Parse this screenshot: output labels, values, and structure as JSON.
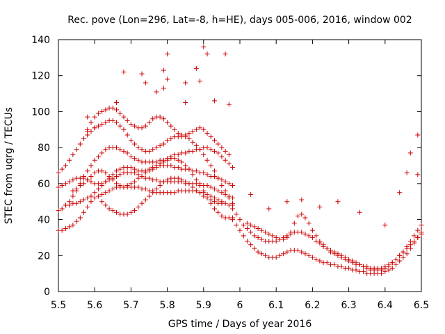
{
  "chart_data": {
    "type": "scatter",
    "title": "Rec. pove (Lon=296, Lat=-8, h=HE), days 005-006, 2016, window 002",
    "xlabel": "GPS time / Days of year 2016",
    "ylabel": "STEC from uqrg / TECUs",
    "xlim": [
      5.5,
      6.5
    ],
    "ylim": [
      0,
      140
    ],
    "xticks": [
      "5.5",
      "5.6",
      "5.7",
      "5.8",
      "5.9",
      "6",
      "6.1",
      "6.2",
      "6.3",
      "6.4",
      "6.5"
    ],
    "yticks": [
      "0",
      "20",
      "40",
      "60",
      "80",
      "100",
      "120",
      "140"
    ],
    "marker": "+",
    "color": "#cc0000",
    "grid": false,
    "legend": "none",
    "series": [
      {
        "x": [
          5.5,
          5.51,
          5.52,
          5.53,
          5.54,
          5.55,
          5.56,
          5.57,
          5.58,
          5.59,
          5.6,
          5.61,
          5.62,
          5.63,
          5.64,
          5.65,
          5.66,
          5.67,
          5.68,
          5.69,
          5.7,
          5.71,
          5.72,
          5.73,
          5.74,
          5.75,
          5.76,
          5.77,
          5.78,
          5.79,
          5.8,
          5.81,
          5.82,
          5.83,
          5.84,
          5.85,
          5.86,
          5.87,
          5.88,
          5.89,
          5.9,
          5.91,
          5.92,
          5.93,
          5.94,
          5.95,
          5.96,
          5.97,
          5.98
        ],
        "values": [
          45,
          46,
          48,
          50,
          53,
          56,
          60,
          64,
          67,
          70,
          73,
          75,
          77,
          79,
          80,
          80,
          80,
          79,
          78,
          77,
          75,
          74,
          73,
          72,
          72,
          72,
          72,
          72,
          73,
          73,
          74,
          75,
          76,
          76,
          77,
          77,
          78,
          78,
          79,
          79,
          80,
          80,
          79,
          78,
          77,
          75,
          73,
          71,
          69
        ]
      },
      {
        "x": [
          5.5,
          5.51,
          5.52,
          5.53,
          5.54,
          5.55,
          5.56,
          5.57,
          5.58,
          5.59,
          5.6,
          5.61,
          5.62,
          5.63,
          5.64,
          5.65,
          5.66,
          5.67,
          5.68,
          5.69,
          5.7,
          5.71,
          5.72,
          5.73,
          5.74,
          5.75,
          5.76,
          5.77,
          5.78,
          5.79,
          5.8,
          5.81,
          5.82,
          5.83,
          5.84,
          5.85,
          5.86,
          5.87,
          5.88,
          5.89,
          5.9,
          5.91,
          5.92,
          5.93,
          5.94,
          5.95,
          5.96,
          5.97,
          5.98
        ],
        "values": [
          34,
          34,
          35,
          36,
          37,
          39,
          41,
          44,
          47,
          50,
          52,
          53,
          54,
          55,
          56,
          57,
          58,
          58,
          58,
          58,
          58,
          58,
          58,
          57,
          57,
          56,
          56,
          55,
          55,
          55,
          55,
          55,
          55,
          56,
          56,
          56,
          56,
          56,
          56,
          55,
          55,
          54,
          53,
          52,
          51,
          50,
          49,
          48,
          48
        ]
      },
      {
        "x": [
          5.5,
          5.51,
          5.52,
          5.53,
          5.54,
          5.55,
          5.56,
          5.57,
          5.58,
          5.59,
          5.6,
          5.61,
          5.62,
          5.63,
          5.64,
          5.65,
          5.66,
          5.67,
          5.68,
          5.69,
          5.7,
          5.71,
          5.72,
          5.73,
          5.74,
          5.75,
          5.76,
          5.77,
          5.78,
          5.79,
          5.8,
          5.81,
          5.82,
          5.83,
          5.84,
          5.85,
          5.86,
          5.87,
          5.88,
          5.89,
          5.9,
          5.91,
          5.92,
          5.93,
          5.94,
          5.95,
          5.96,
          5.97,
          5.98
        ],
        "values": [
          58,
          59,
          60,
          61,
          62,
          63,
          63,
          63,
          62,
          61,
          60,
          60,
          60,
          61,
          62,
          63,
          64,
          65,
          66,
          66,
          66,
          66,
          65,
          64,
          63,
          63,
          62,
          62,
          61,
          61,
          61,
          61,
          61,
          61,
          61,
          60,
          60,
          60,
          60,
          60,
          59,
          59,
          58,
          57,
          56,
          55,
          54,
          53,
          52
        ]
      },
      {
        "x": [
          5.5,
          5.51,
          5.52,
          5.53,
          5.54,
          5.55,
          5.56,
          5.57,
          5.58,
          5.59,
          5.6,
          5.61,
          5.62,
          5.63,
          5.64,
          5.65,
          5.66,
          5.67,
          5.68,
          5.69,
          5.7,
          5.71,
          5.72,
          5.73,
          5.74,
          5.75,
          5.76,
          5.77,
          5.78,
          5.79,
          5.8,
          5.81,
          5.82,
          5.83,
          5.84,
          5.85,
          5.86,
          5.87,
          5.88,
          5.89,
          5.9,
          5.91,
          5.92,
          5.93,
          5.94,
          5.95,
          5.96,
          5.97,
          5.98
        ],
        "values": [
          66,
          68,
          70,
          73,
          76,
          79,
          82,
          85,
          87,
          89,
          91,
          92,
          93,
          94,
          95,
          95,
          94,
          92,
          90,
          87,
          84,
          82,
          80,
          79,
          78,
          78,
          79,
          80,
          81,
          82,
          84,
          85,
          86,
          86,
          86,
          86,
          85,
          83,
          81,
          79,
          76,
          73,
          70,
          67,
          63,
          59,
          56,
          52,
          49
        ]
      },
      {
        "x": [
          5.52,
          5.53,
          5.54,
          5.55,
          5.56,
          5.57,
          5.58,
          5.59,
          5.6,
          5.61,
          5.62,
          5.63,
          5.64,
          5.65,
          5.66,
          5.67,
          5.68,
          5.69,
          5.7,
          5.71,
          5.72,
          5.73,
          5.74,
          5.75,
          5.76,
          5.77,
          5.78,
          5.79,
          5.8,
          5.81,
          5.82,
          5.83,
          5.84,
          5.85,
          5.86,
          5.87,
          5.88,
          5.89,
          5.9,
          5.91,
          5.92,
          5.93,
          5.94,
          5.95,
          5.96,
          5.97,
          5.98
        ],
        "values": [
          48,
          48,
          49,
          49,
          50,
          51,
          52,
          53,
          55,
          57,
          59,
          61,
          63,
          65,
          67,
          68,
          69,
          69,
          69,
          68,
          67,
          67,
          67,
          68,
          69,
          70,
          71,
          72,
          73,
          74,
          74,
          73,
          72,
          70,
          68,
          65,
          62,
          59,
          56,
          52,
          49,
          46,
          44,
          42,
          41,
          41,
          41
        ]
      },
      {
        "x": [
          5.54,
          5.55,
          5.56,
          5.57,
          5.58,
          5.59,
          5.6,
          5.61,
          5.62,
          5.63,
          5.64,
          5.65,
          5.66,
          5.67,
          5.68,
          5.69,
          5.7,
          5.71,
          5.72,
          5.73,
          5.74,
          5.75,
          5.76,
          5.77,
          5.78,
          5.79,
          5.8,
          5.81,
          5.82,
          5.83,
          5.84,
          5.85,
          5.86,
          5.87,
          5.88,
          5.89,
          5.9,
          5.91,
          5.92,
          5.93,
          5.94,
          5.95,
          5.96,
          5.97,
          5.98
        ],
        "values": [
          56,
          57,
          59,
          60,
          62,
          64,
          66,
          67,
          67,
          66,
          64,
          62,
          60,
          59,
          58,
          59,
          60,
          61,
          63,
          64,
          66,
          67,
          68,
          69,
          70,
          70,
          70,
          70,
          69,
          69,
          68,
          68,
          68,
          67,
          67,
          66,
          66,
          65,
          64,
          64,
          63,
          62,
          61,
          60,
          59
        ]
      },
      {
        "x": [
          5.58,
          5.59,
          5.6,
          5.61,
          5.62,
          5.63,
          5.64,
          5.65,
          5.66,
          5.67,
          5.68,
          5.69,
          5.7,
          5.71,
          5.72,
          5.73,
          5.74,
          5.75,
          5.76,
          5.77,
          5.78,
          5.79,
          5.8,
          5.81,
          5.82,
          5.83,
          5.84,
          5.85,
          5.86,
          5.87,
          5.88,
          5.89,
          5.9,
          5.91,
          5.92,
          5.93,
          5.94,
          5.95,
          5.96,
          5.97
        ],
        "values": [
          90,
          94,
          97,
          99,
          100,
          101,
          102,
          102,
          101,
          99,
          97,
          95,
          93,
          92,
          91,
          91,
          92,
          94,
          96,
          97,
          97,
          96,
          94,
          92,
          90,
          88,
          87,
          87,
          88,
          89,
          90,
          91,
          90,
          88,
          86,
          84,
          82,
          80,
          78,
          76
        ]
      },
      {
        "x": [
          5.62,
          5.63,
          5.64,
          5.65,
          5.66,
          5.67,
          5.68,
          5.69,
          5.7,
          5.71,
          5.72,
          5.73,
          5.74,
          5.75,
          5.76,
          5.77,
          5.78,
          5.79,
          5.8,
          5.81,
          5.82,
          5.83,
          5.84,
          5.85,
          5.86,
          5.87,
          5.88,
          5.89,
          5.9,
          5.91,
          5.92,
          5.93,
          5.94,
          5.95
        ],
        "values": [
          50,
          48,
          46,
          45,
          44,
          43,
          43,
          43,
          44,
          45,
          47,
          49,
          51,
          53,
          55,
          57,
          59,
          61,
          62,
          63,
          63,
          63,
          62,
          61,
          60,
          58,
          56,
          55,
          53,
          52,
          51,
          50,
          49,
          49
        ]
      },
      {
        "x": [
          5.98,
          5.99,
          6.0,
          6.01,
          6.02,
          6.03,
          6.04,
          6.05,
          6.06,
          6.07,
          6.08,
          6.09,
          6.1,
          6.11,
          6.12,
          6.13,
          6.14,
          6.15,
          6.16,
          6.17,
          6.18,
          6.19,
          6.2,
          6.21,
          6.22,
          6.23,
          6.24,
          6.25,
          6.26,
          6.27,
          6.28,
          6.29,
          6.3,
          6.31,
          6.32,
          6.33,
          6.34,
          6.35,
          6.36,
          6.37,
          6.38,
          6.39,
          6.4,
          6.41,
          6.42,
          6.43,
          6.44,
          6.45,
          6.46,
          6.47,
          6.48,
          6.49,
          6.5
        ],
        "values": [
          46,
          43,
          40,
          37,
          35,
          33,
          31,
          30,
          29,
          28,
          28,
          28,
          28,
          29,
          30,
          31,
          32,
          33,
          33,
          33,
          32,
          31,
          30,
          28,
          27,
          25,
          24,
          22,
          21,
          20,
          19,
          18,
          17,
          16,
          15,
          15,
          14,
          14,
          13,
          13,
          13,
          13,
          14,
          15,
          16,
          18,
          20,
          22,
          25,
          28,
          31,
          34,
          37
        ]
      },
      {
        "x": [
          5.98,
          5.99,
          6.0,
          6.01,
          6.02,
          6.03,
          6.04,
          6.05,
          6.06,
          6.07,
          6.08,
          6.09,
          6.1,
          6.11,
          6.12,
          6.13,
          6.14,
          6.15,
          6.16,
          6.17,
          6.18,
          6.19,
          6.2,
          6.21,
          6.22,
          6.23,
          6.24,
          6.25,
          6.26,
          6.27,
          6.28,
          6.29,
          6.3,
          6.31,
          6.32,
          6.33,
          6.34,
          6.35,
          6.36,
          6.37,
          6.38,
          6.39,
          6.4,
          6.41,
          6.42,
          6.43,
          6.44,
          6.45,
          6.46,
          6.47,
          6.48,
          6.49,
          6.5
        ],
        "values": [
          40,
          37,
          34,
          31,
          28,
          26,
          24,
          22,
          21,
          20,
          19,
          19,
          19,
          20,
          21,
          22,
          23,
          23,
          23,
          22,
          21,
          20,
          19,
          18,
          17,
          16,
          16,
          15,
          15,
          14,
          14,
          13,
          13,
          12,
          12,
          11,
          11,
          10,
          10,
          10,
          10,
          10,
          11,
          12,
          13,
          15,
          17,
          19,
          21,
          24,
          27,
          30,
          33
        ]
      },
      {
        "x": [
          6.02,
          6.03,
          6.04,
          6.05,
          6.06,
          6.07,
          6.08,
          6.09,
          6.1,
          6.11,
          6.12,
          6.13,
          6.14,
          6.15,
          6.16,
          6.17,
          6.18,
          6.19,
          6.2,
          6.21,
          6.22,
          6.23,
          6.24,
          6.25,
          6.26,
          6.27,
          6.28,
          6.29,
          6.3,
          6.31,
          6.32,
          6.33,
          6.34,
          6.35,
          6.36,
          6.37,
          6.38,
          6.39,
          6.4,
          6.41,
          6.42,
          6.43,
          6.44,
          6.45,
          6.46,
          6.47,
          6.48,
          6.49,
          6.5
        ],
        "values": [
          38,
          37,
          36,
          35,
          34,
          33,
          32,
          31,
          30,
          29,
          29,
          30,
          33,
          38,
          42,
          43,
          41,
          38,
          34,
          31,
          28,
          26,
          24,
          23,
          22,
          21,
          20,
          19,
          18,
          17,
          16,
          15,
          14,
          13,
          12,
          12,
          12,
          12,
          13,
          14,
          16,
          18,
          20,
          22,
          24,
          26,
          28,
          30,
          32
        ]
      }
    ],
    "outliers": {
      "x": [
        5.58,
        5.58,
        5.66,
        5.68,
        5.73,
        5.74,
        5.77,
        5.79,
        5.79,
        5.8,
        5.8,
        5.85,
        5.88,
        5.89,
        5.9,
        5.91,
        5.93,
        5.96,
        5.97,
        6.13,
        6.27,
        6.33,
        6.4,
        6.44,
        6.46,
        6.47,
        6.49,
        6.49,
        6.03,
        6.08,
        6.17,
        6.22,
        5.6,
        5.85
      ],
      "values": [
        97,
        89,
        105,
        122,
        121,
        116,
        111,
        123,
        113,
        132,
        118,
        116,
        124,
        117,
        136,
        132,
        106,
        132,
        104,
        50,
        50,
        44,
        37,
        55,
        66,
        77,
        87,
        65,
        54,
        46,
        51,
        47,
        91,
        105
      ]
    }
  }
}
